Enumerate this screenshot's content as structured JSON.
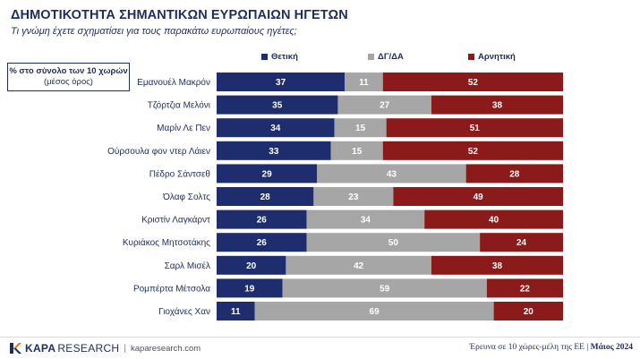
{
  "header": {
    "title": "ΔΗΜΟΤΙΚΟΤΗΤΑ ΣΗΜΑΝΤΙΚΩΝ ΕΥΡΩΠΑΙΩΝ ΗΓΕΤΩΝ",
    "subtitle": "Τι γνώμη έχετε σχηματίσει για τους παρακάτω ευρωπαίους ηγέτες;"
  },
  "note": {
    "line1": "% στο σύνολο των 10 χωρών",
    "line2": "(μέσος όρος)"
  },
  "colors": {
    "positive": "#1e2d6e",
    "neutral": "#a6a6a6",
    "negative": "#8b1a1a"
  },
  "chart_data": {
    "type": "bar",
    "orientation": "horizontal",
    "stacked": true,
    "categories": [
      "Εμανουέλ Μακρόν",
      "Τζόρτζια Μελόνι",
      "Μαρίν Λε Πεν",
      "Ούρσουλα φον ντερ Λάιεν",
      "Πέδρο Σάντσεθ",
      "Όλαφ Σολτς",
      "Κριστίν Λαγκάρντ",
      "Κυριάκος Μητσοτάκης",
      "Σαρλ Μισέλ",
      "Ρομπέρτα Μέτσολα",
      "Γιοχάνες Χαν"
    ],
    "series": [
      {
        "name": "Θετική",
        "values": [
          37,
          35,
          34,
          33,
          29,
          28,
          26,
          26,
          20,
          19,
          11
        ]
      },
      {
        "name": "ΔΓ/ΔΑ",
        "values": [
          11,
          27,
          15,
          15,
          43,
          23,
          34,
          50,
          42,
          59,
          69
        ]
      },
      {
        "name": "Αρνητική",
        "values": [
          52,
          38,
          51,
          52,
          28,
          49,
          40,
          24,
          38,
          22,
          20
        ]
      }
    ],
    "xlim": [
      0,
      100
    ],
    "grid": false,
    "legend_position": "top"
  },
  "footer": {
    "brand_k": "KAPA",
    "brand_r": "RESEARCH",
    "separator": "|",
    "url": "kaparesearch.com",
    "source": "Έρευνα σε 10 χώρες-μέλη της ΕΕ",
    "source_sep": "|",
    "date": "Μάιος 2024"
  }
}
